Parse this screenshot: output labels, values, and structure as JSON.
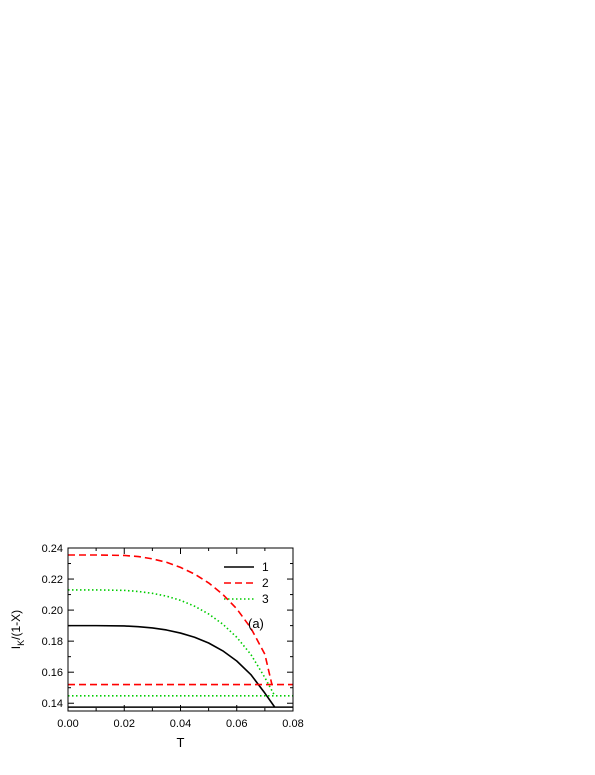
{
  "chart_data": {
    "type": "line",
    "title": "",
    "xlabel": "T",
    "ylabel_main": "I",
    "ylabel_sub": "K",
    "ylabel_rest": "/(1-X)",
    "panel_label": "(a)",
    "xlim": [
      0.0,
      0.08
    ],
    "ylim": [
      0.135,
      0.24
    ],
    "x_ticks": [
      0.0,
      0.02,
      0.04,
      0.06,
      0.08
    ],
    "x_tick_labels": [
      "0.00",
      "0.02",
      "0.04",
      "0.06",
      "0.08"
    ],
    "y_ticks": [
      0.14,
      0.16,
      0.18,
      0.2,
      0.22,
      0.24
    ],
    "y_tick_labels": [
      "0.14",
      "0.16",
      "0.18",
      "0.20",
      "0.22",
      "0.24"
    ],
    "grid": false,
    "legend_position": "top-right",
    "series": [
      {
        "name": "1",
        "color": "#000000",
        "style": "solid",
        "upper": {
          "x": [
            0.0,
            0.01,
            0.02,
            0.025,
            0.03,
            0.035,
            0.04,
            0.045,
            0.05,
            0.055,
            0.06,
            0.065,
            0.07,
            0.0735
          ],
          "y": [
            0.19,
            0.19,
            0.1898,
            0.1893,
            0.1885,
            0.1872,
            0.1852,
            0.1825,
            0.1788,
            0.1738,
            0.1672,
            0.1585,
            0.1465,
            0.1375
          ]
        },
        "lower": {
          "x": [
            0.0,
            0.08
          ],
          "y": [
            0.1375,
            0.1375
          ]
        }
      },
      {
        "name": "2",
        "color": "#ff0000",
        "style": "dashed",
        "upper": {
          "x": [
            0.0,
            0.01,
            0.02,
            0.025,
            0.03,
            0.035,
            0.04,
            0.045,
            0.05,
            0.055,
            0.06,
            0.065,
            0.07,
            0.0725
          ],
          "y": [
            0.2355,
            0.2355,
            0.2352,
            0.2345,
            0.233,
            0.2308,
            0.2275,
            0.2232,
            0.2175,
            0.2102,
            0.2008,
            0.1885,
            0.1715,
            0.152
          ]
        },
        "lower": {
          "x": [
            0.0,
            0.08
          ],
          "y": [
            0.152,
            0.152
          ]
        }
      },
      {
        "name": "3",
        "color": "#00cc00",
        "style": "dotted",
        "upper": {
          "x": [
            0.0,
            0.01,
            0.02,
            0.025,
            0.03,
            0.035,
            0.04,
            0.045,
            0.05,
            0.055,
            0.06,
            0.065,
            0.07,
            0.0735
          ],
          "y": [
            0.213,
            0.213,
            0.2127,
            0.212,
            0.2108,
            0.209,
            0.2063,
            0.2025,
            0.1975,
            0.191,
            0.1825,
            0.1715,
            0.1565,
            0.1448
          ]
        },
        "lower": {
          "x": [
            0.0,
            0.08
          ],
          "y": [
            0.1448,
            0.1448
          ]
        }
      }
    ]
  }
}
